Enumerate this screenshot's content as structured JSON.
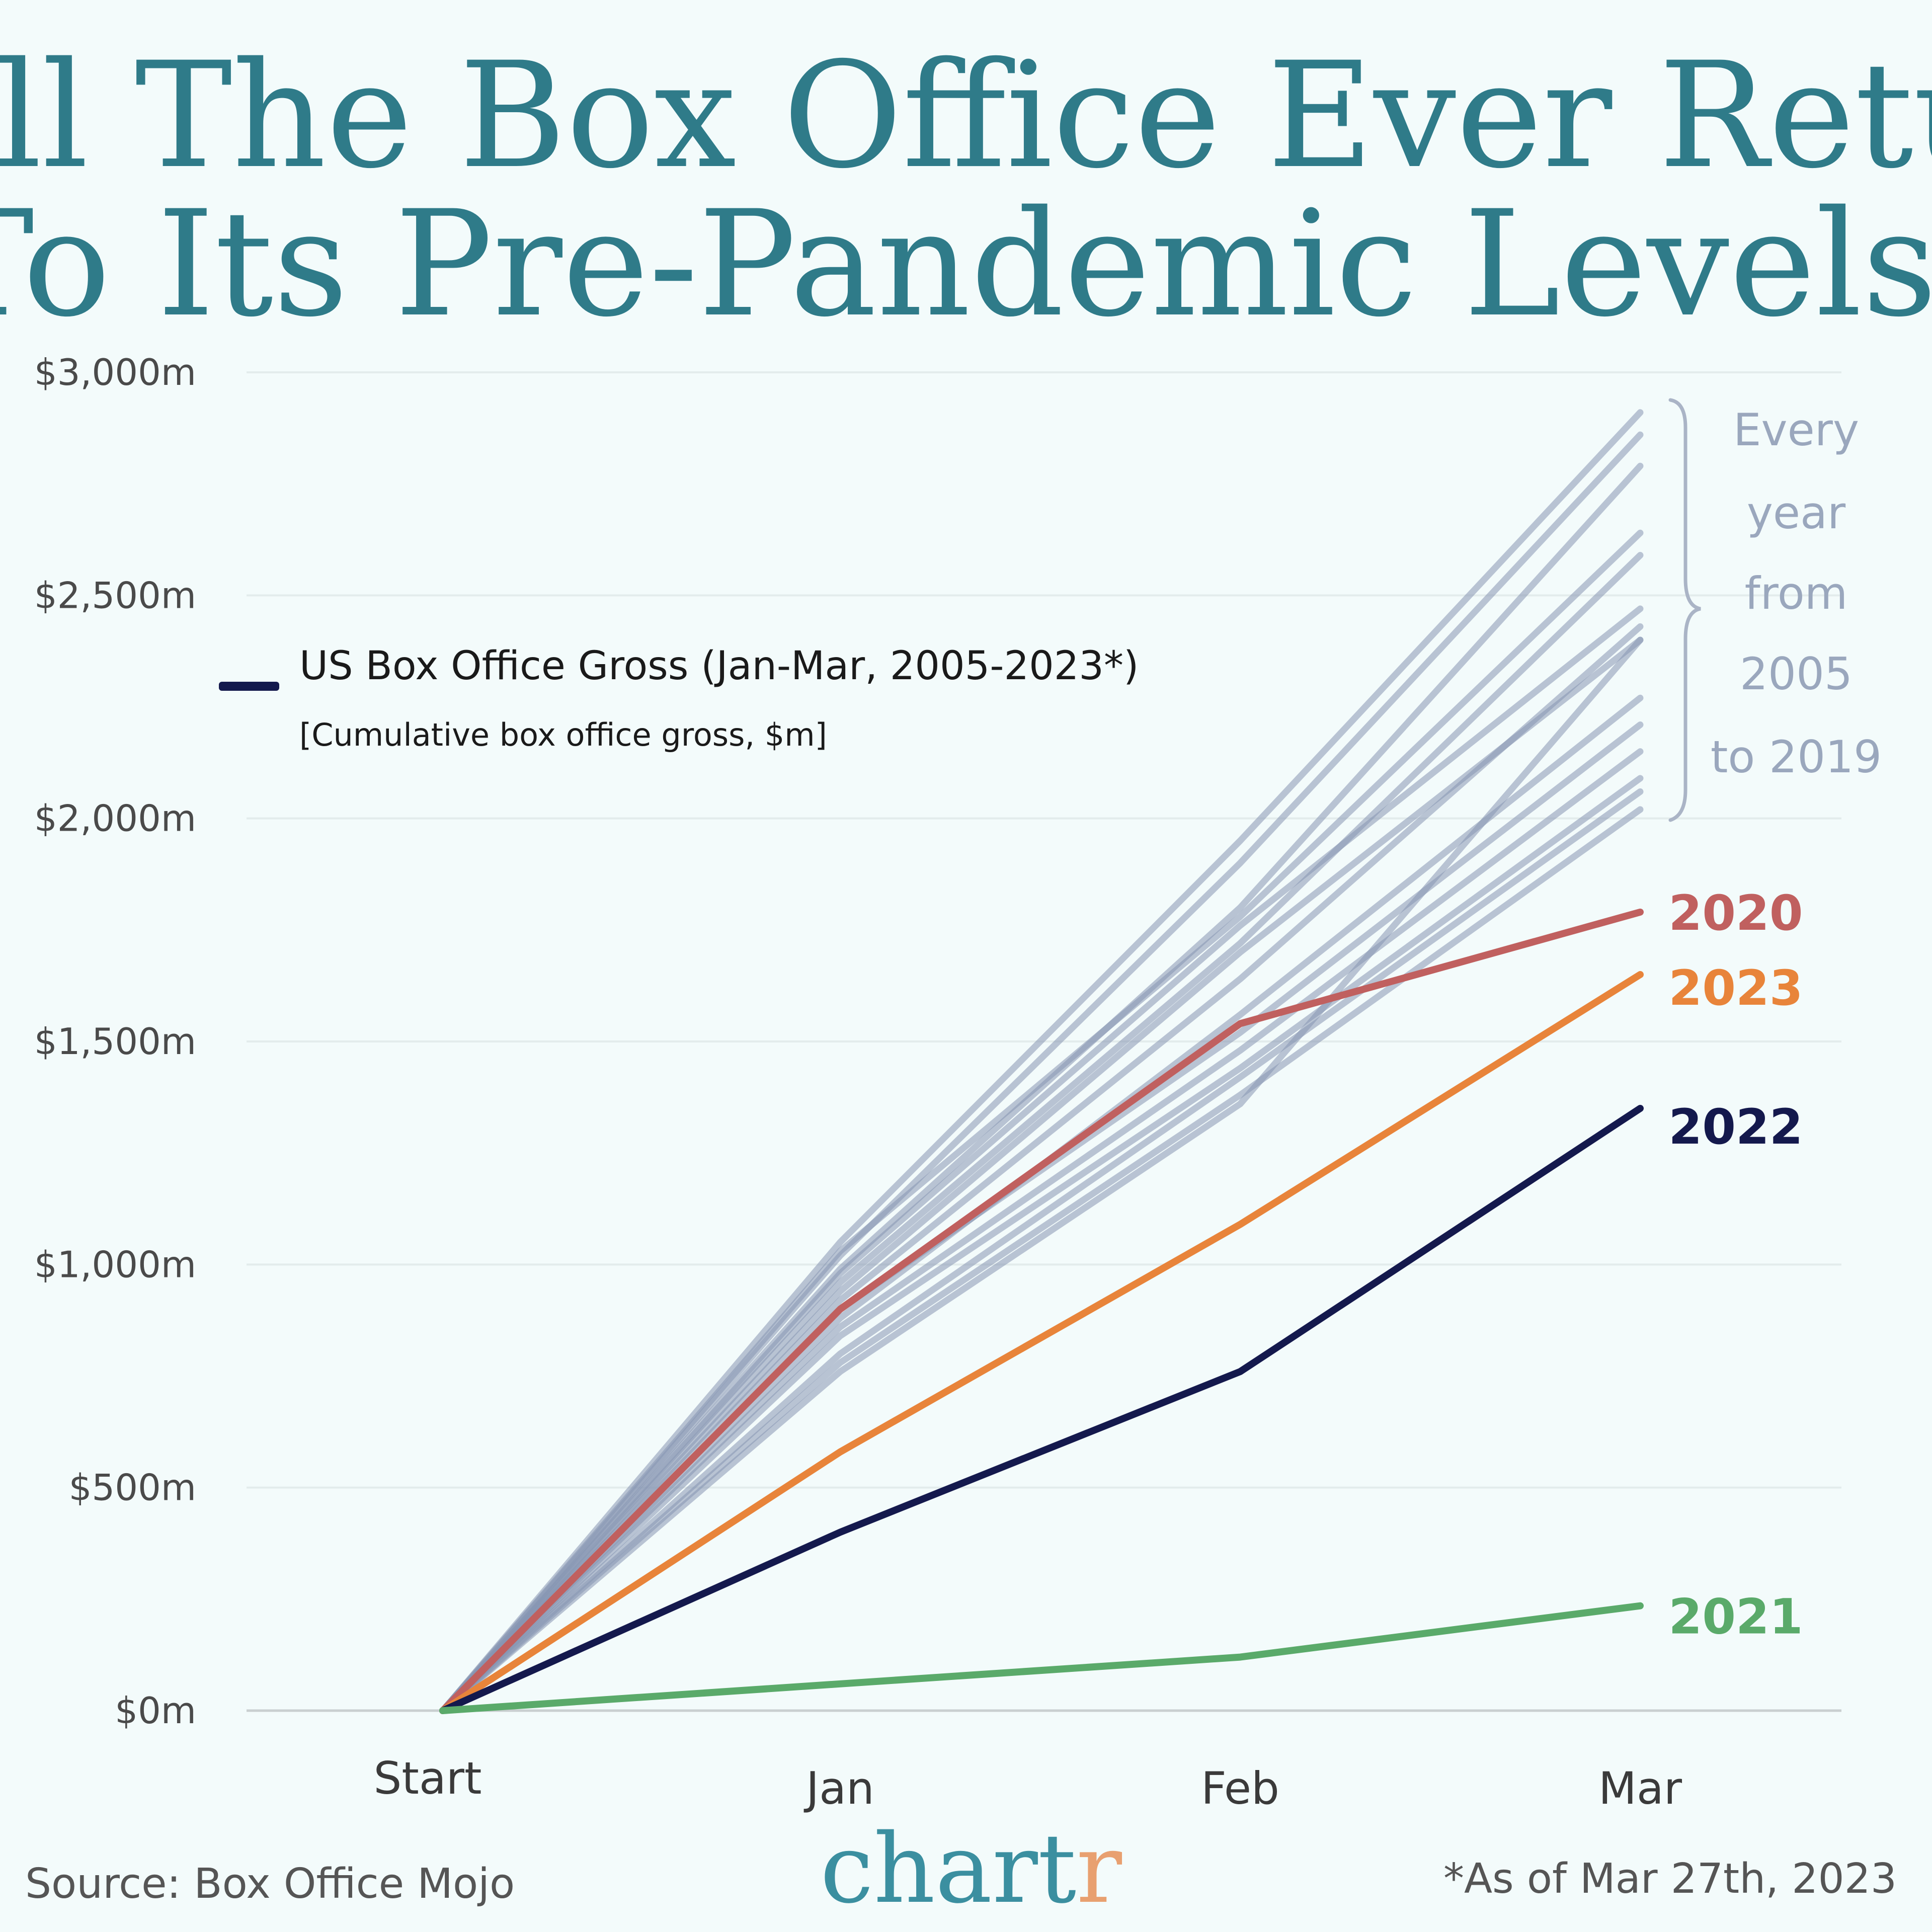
{
  "title": {
    "line1": "Will The Box Office Ever Return",
    "line2": "To Its Pre-Pandemic Levels?"
  },
  "legend": {
    "title": "US Box Office Gross (Jan-Mar, 2005-2023*)",
    "subtitle": "[Cumulative box office gross, $m]"
  },
  "brace_annotation": {
    "lines": [
      "Every",
      "year",
      "from",
      "2005",
      "to 2019"
    ]
  },
  "footer": {
    "source": "Source: Box Office Mojo",
    "brand_main": "chart",
    "brand_accent": "r",
    "note": "*As of Mar 27th, 2023"
  },
  "colors": {
    "background": "#f3fbfb",
    "title": "#2f7b89",
    "historical": "#8795b2",
    "y2020": "#c0605f",
    "y2023": "#e8843a",
    "y2022": "#14194d",
    "y2021": "#5aaa6a",
    "legend_swatch": "#14194d",
    "brand_main": "#3b8fa0",
    "brand_accent": "#e8a070"
  },
  "chart_data": {
    "type": "line",
    "categories": [
      "Start",
      "Jan",
      "Feb",
      "Mar"
    ],
    "y_tick_labels": [
      "$0m",
      "$500m",
      "$1,000m",
      "$1,500m",
      "$2,000m",
      "$2,500m",
      "$3,000m"
    ],
    "y_ticks": [
      0,
      500,
      1000,
      1500,
      2000,
      2500,
      3000
    ],
    "ylim": [
      0,
      3000
    ],
    "grid": true,
    "legend_position": "upper-left",
    "series": [
      {
        "group": "historical",
        "values": [
          0,
          1050,
          1950,
          2910
        ]
      },
      {
        "group": "historical",
        "values": [
          0,
          1020,
          1900,
          2860
        ]
      },
      {
        "group": "historical",
        "values": [
          0,
          990,
          1800,
          2790
        ]
      },
      {
        "group": "historical",
        "values": [
          0,
          1030,
          1780,
          2640
        ]
      },
      {
        "group": "historical",
        "values": [
          0,
          960,
          1720,
          2590
        ]
      },
      {
        "group": "historical",
        "values": [
          0,
          980,
          1760,
          2470
        ]
      },
      {
        "group": "historical",
        "values": [
          0,
          920,
          1640,
          2430
        ]
      },
      {
        "group": "historical",
        "values": [
          0,
          940,
          1700,
          2400
        ]
      },
      {
        "group": "historical",
        "values": [
          0,
          880,
          1560,
          2270
        ]
      },
      {
        "group": "historical",
        "values": [
          0,
          900,
          1520,
          2210
        ]
      },
      {
        "group": "historical",
        "values": [
          0,
          860,
          1480,
          2150
        ]
      },
      {
        "group": "historical",
        "values": [
          0,
          840,
          1440,
          2090
        ]
      },
      {
        "group": "historical",
        "values": [
          0,
          800,
          1420,
          2060
        ]
      },
      {
        "group": "historical",
        "values": [
          0,
          780,
          1380,
          2020
        ]
      },
      {
        "group": "historical",
        "values": [
          0,
          760,
          1360,
          2400
        ]
      },
      {
        "name": "2020",
        "values": [
          0,
          900,
          1540,
          1790
        ]
      },
      {
        "name": "2023",
        "values": [
          0,
          580,
          1090,
          1650
        ]
      },
      {
        "name": "2022",
        "values": [
          0,
          400,
          760,
          1350
        ]
      },
      {
        "name": "2021",
        "values": [
          0,
          60,
          120,
          235
        ]
      }
    ]
  }
}
